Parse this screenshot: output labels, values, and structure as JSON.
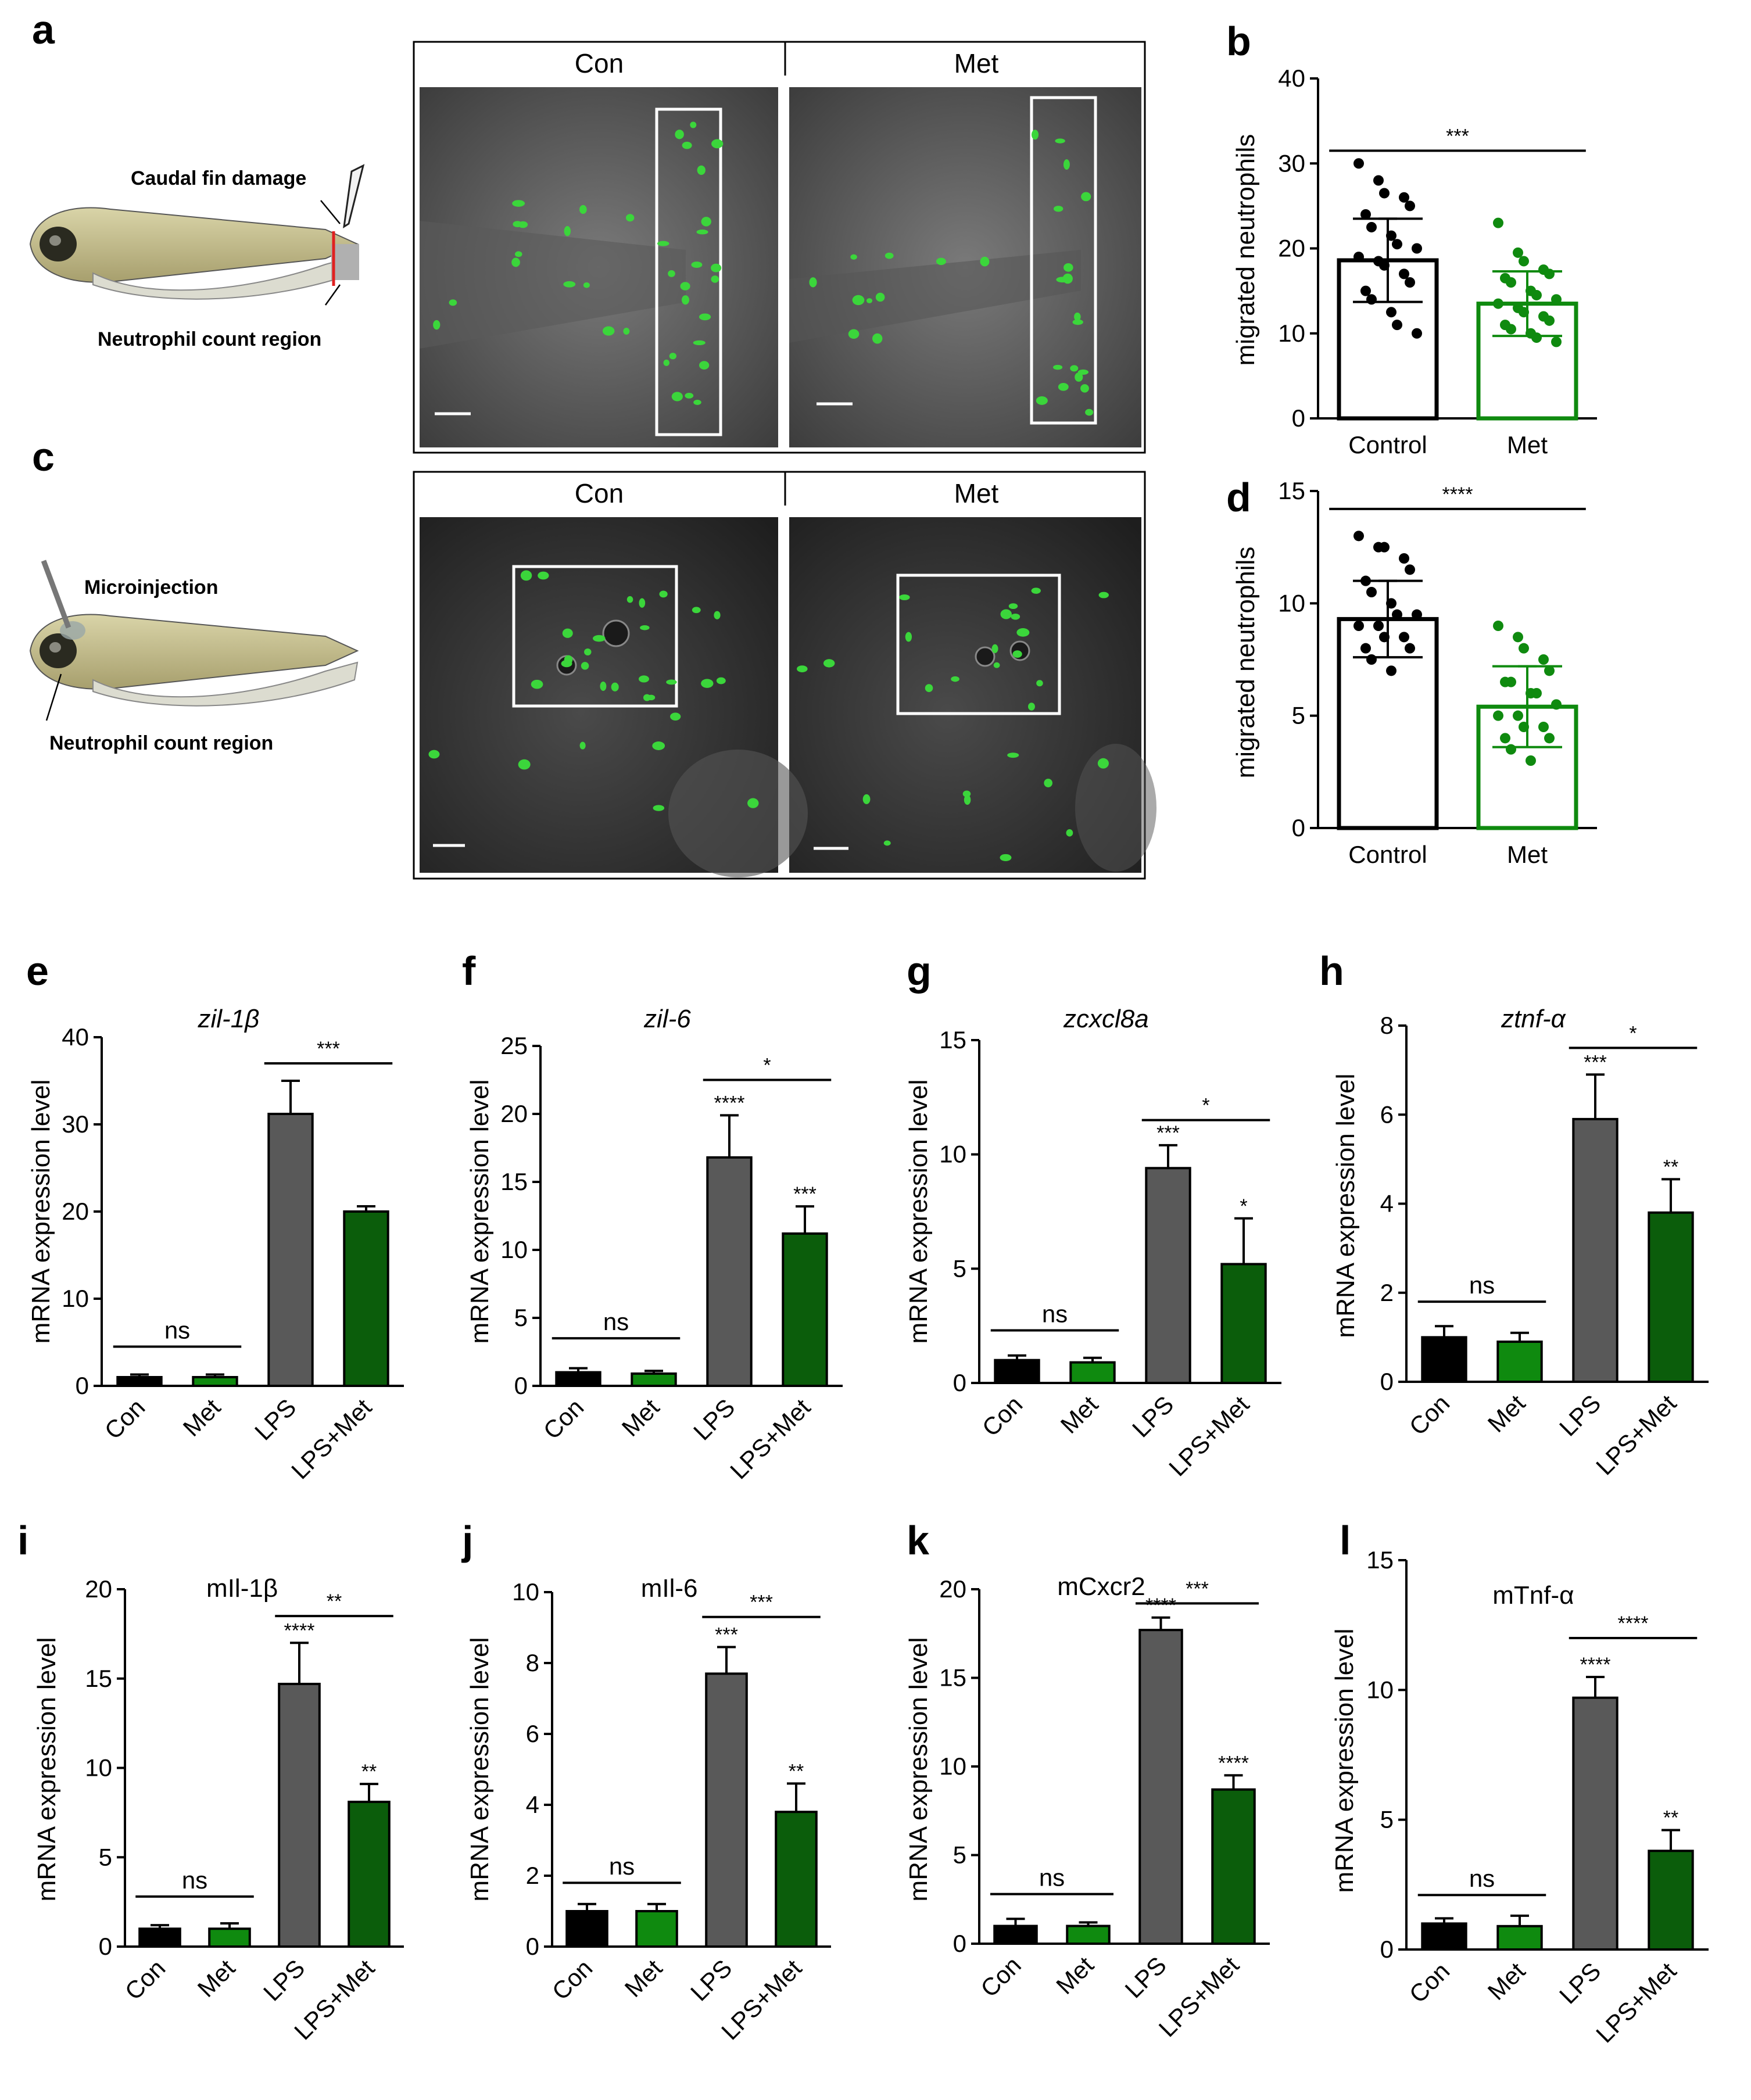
{
  "panel_letters": {
    "a": "a",
    "b": "b",
    "c": "c",
    "d": "d",
    "e": "e",
    "f": "f",
    "g": "g",
    "h": "h",
    "i": "i",
    "j": "j",
    "k": "k",
    "l": "l"
  },
  "schematic_a": {
    "label_top": "Caudal fin damage",
    "label_bottom": "Neutrophil count region"
  },
  "schematic_c": {
    "label_top": "Microinjection",
    "label_bottom": "Neutrophil count region"
  },
  "micrographs": {
    "a": {
      "left_header": "Con",
      "right_header": "Met"
    },
    "c": {
      "left_header": "Con",
      "right_header": "Met"
    }
  },
  "colors": {
    "black": "#000000",
    "green": "#0f8a0f",
    "gray": "#595959",
    "darkgreen": "#0b5d0b",
    "fluor": "#3bd63b",
    "cut": "#e02020"
  },
  "chart_data": [
    {
      "id": "b",
      "type": "bar",
      "ylabel": "migrated neutrophils",
      "categories": [
        "Control",
        "Met"
      ],
      "values": [
        18.6,
        13.5
      ],
      "errors": [
        4.9,
        3.8
      ],
      "ylim": [
        0,
        40
      ],
      "yticks": [
        "0",
        "10",
        "20",
        "30",
        "40"
      ],
      "points": [
        [
          30,
          28,
          26.5,
          26,
          25,
          24,
          22.5,
          21.5,
          20.5,
          20,
          19,
          18.5,
          18,
          17,
          16,
          15,
          14,
          12.5,
          11,
          10
        ],
        [
          23,
          19.5,
          18.5,
          17.5,
          17,
          16.5,
          16,
          15,
          14.5,
          14,
          13.5,
          13,
          12.5,
          12,
          11.5,
          11,
          10.5,
          10,
          9.5,
          9
        ]
      ],
      "fill_colors": [
        "#ffffff",
        "#ffffff"
      ],
      "edge_colors": [
        "#000000",
        "#0f8a0f"
      ],
      "significance": [
        {
          "text": "***",
          "from": 0,
          "to": 1,
          "y": 31.5
        }
      ]
    },
    {
      "id": "d",
      "type": "bar",
      "ylabel": "migrated neutrophils",
      "categories": [
        "Control",
        "Met"
      ],
      "values": [
        9.3,
        5.4
      ],
      "errors": [
        1.7,
        1.8
      ],
      "ylim": [
        0,
        15
      ],
      "yticks": [
        "0",
        "5",
        "10",
        "15"
      ],
      "points": [
        [
          13,
          12.5,
          12.5,
          12,
          11.5,
          11,
          10.5,
          10,
          9.5,
          9.5,
          9,
          9,
          8.5,
          8.5,
          8,
          8,
          7.5,
          7
        ],
        [
          9,
          8.5,
          8,
          7.5,
          7,
          6.5,
          6.5,
          6,
          6,
          5.5,
          5,
          5,
          4.5,
          4.5,
          4,
          4,
          3.5,
          3
        ]
      ],
      "fill_colors": [
        "#ffffff",
        "#ffffff"
      ],
      "edge_colors": [
        "#000000",
        "#0f8a0f"
      ],
      "significance": [
        {
          "text": "****",
          "from": 0,
          "to": 1,
          "y": 14.2
        }
      ]
    },
    {
      "id": "e",
      "type": "bar",
      "title": "zil-1β",
      "title_italic": true,
      "ylabel": "mRNA expression level",
      "categories": [
        "Con",
        "Met",
        "LPS",
        "LPS+Met"
      ],
      "values": [
        1.0,
        1.0,
        31.2,
        20.0
      ],
      "errors": [
        0.3,
        0.3,
        3.8,
        0.6
      ],
      "ylim": [
        0,
        40
      ],
      "yticks": [
        "0",
        "10",
        "20",
        "30",
        "40"
      ],
      "fill_colors": [
        "#000000",
        "#0f8a0f",
        "#595959",
        "#0b5d0b"
      ],
      "bar_marks": [
        "",
        "",
        "",
        ""
      ],
      "significance": [
        {
          "text": "ns",
          "from": 0,
          "to": 1,
          "y": 4.5
        },
        {
          "text": "***",
          "from": 2,
          "to": 3,
          "y": 37.0
        }
      ]
    },
    {
      "id": "f",
      "type": "bar",
      "title": "zil-6",
      "title_italic": true,
      "ylabel": "mRNA expression level",
      "categories": [
        "Con",
        "Met",
        "LPS",
        "LPS+Met"
      ],
      "values": [
        1.0,
        0.9,
        16.8,
        11.2
      ],
      "errors": [
        0.3,
        0.2,
        3.1,
        2.0
      ],
      "ylim": [
        0,
        25
      ],
      "yticks": [
        "0",
        "5",
        "10",
        "15",
        "20",
        "25"
      ],
      "fill_colors": [
        "#000000",
        "#0f8a0f",
        "#595959",
        "#0b5d0b"
      ],
      "bar_marks": [
        "",
        "",
        "****",
        "***"
      ],
      "significance": [
        {
          "text": "ns",
          "from": 0,
          "to": 1,
          "y": 3.5
        },
        {
          "text": "*",
          "from": 2,
          "to": 3,
          "y": 22.5
        }
      ]
    },
    {
      "id": "g",
      "type": "bar",
      "title": "zcxcl8a",
      "title_italic": true,
      "ylabel": "mRNA expression level",
      "categories": [
        "Con",
        "Met",
        "LPS",
        "LPS+Met"
      ],
      "values": [
        1.0,
        0.9,
        9.4,
        5.2
      ],
      "errors": [
        0.2,
        0.2,
        1.0,
        2.0
      ],
      "ylim": [
        0,
        15
      ],
      "yticks": [
        "0",
        "5",
        "10",
        "15"
      ],
      "fill_colors": [
        "#000000",
        "#0f8a0f",
        "#595959",
        "#0b5d0b"
      ],
      "bar_marks": [
        "",
        "",
        "***",
        "*"
      ],
      "significance": [
        {
          "text": "ns",
          "from": 0,
          "to": 1,
          "y": 2.3
        },
        {
          "text": "*",
          "from": 2,
          "to": 3,
          "y": 11.5
        }
      ]
    },
    {
      "id": "h",
      "type": "bar",
      "title": "ztnf-α",
      "title_italic": true,
      "ylabel": "mRNA expression level",
      "categories": [
        "Con",
        "Met",
        "LPS",
        "LPS+Met"
      ],
      "values": [
        1.0,
        0.9,
        5.9,
        3.8
      ],
      "errors": [
        0.25,
        0.2,
        1.0,
        0.75
      ],
      "ylim": [
        0,
        8
      ],
      "yticks": [
        "0",
        "2",
        "4",
        "6",
        "8"
      ],
      "fill_colors": [
        "#000000",
        "#0f8a0f",
        "#595959",
        "#0b5d0b"
      ],
      "bar_marks": [
        "",
        "",
        "***",
        "**"
      ],
      "significance": [
        {
          "text": "ns",
          "from": 0,
          "to": 1,
          "y": 1.8
        },
        {
          "text": "*",
          "from": 2,
          "to": 3,
          "y": 7.5
        }
      ]
    },
    {
      "id": "i",
      "type": "bar",
      "title": "mIl-1β",
      "title_italic": false,
      "ylabel": "mRNA expression level",
      "categories": [
        "Con",
        "Met",
        "LPS",
        "LPS+Met"
      ],
      "values": [
        1.0,
        1.0,
        14.7,
        8.1
      ],
      "errors": [
        0.2,
        0.3,
        2.3,
        1.0
      ],
      "ylim": [
        0,
        20
      ],
      "yticks": [
        "0",
        "5",
        "10",
        "15",
        "20"
      ],
      "fill_colors": [
        "#000000",
        "#0f8a0f",
        "#595959",
        "#0b5d0b"
      ],
      "bar_marks": [
        "",
        "",
        "****",
        "**"
      ],
      "significance": [
        {
          "text": "ns",
          "from": 0,
          "to": 1,
          "y": 2.8
        },
        {
          "text": "**",
          "from": 2,
          "to": 3,
          "y": 18.5
        }
      ]
    },
    {
      "id": "j",
      "type": "bar",
      "title": "mIl-6",
      "title_italic": false,
      "ylabel": "mRNA expression level",
      "categories": [
        "Con",
        "Met",
        "LPS",
        "LPS+Met"
      ],
      "values": [
        1.0,
        1.0,
        7.7,
        3.8
      ],
      "errors": [
        0.2,
        0.2,
        0.75,
        0.8
      ],
      "ylim": [
        0,
        10
      ],
      "yticks": [
        "0",
        "2",
        "4",
        "6",
        "8",
        "10"
      ],
      "fill_colors": [
        "#000000",
        "#0f8a0f",
        "#595959",
        "#0b5d0b"
      ],
      "bar_marks": [
        "",
        "",
        "***",
        "**"
      ],
      "significance": [
        {
          "text": "ns",
          "from": 0,
          "to": 1,
          "y": 1.8
        },
        {
          "text": "***",
          "from": 2,
          "to": 3,
          "y": 9.3
        }
      ]
    },
    {
      "id": "k",
      "type": "bar",
      "title": "mCxcr2",
      "title_italic": false,
      "ylabel": "mRNA expression level",
      "categories": [
        "Con",
        "Met",
        "LPS",
        "LPS+Met"
      ],
      "values": [
        1.0,
        1.0,
        17.7,
        8.7
      ],
      "errors": [
        0.4,
        0.2,
        0.7,
        0.8
      ],
      "ylim": [
        0,
        20
      ],
      "yticks": [
        "0",
        "5",
        "10",
        "15",
        "20"
      ],
      "fill_colors": [
        "#000000",
        "#0f8a0f",
        "#595959",
        "#0b5d0b"
      ],
      "bar_marks": [
        "",
        "",
        "****",
        "****"
      ],
      "significance": [
        {
          "text": "ns",
          "from": 0,
          "to": 1,
          "y": 2.8
        },
        {
          "text": "***",
          "from": 2,
          "to": 3,
          "y": 19.2
        }
      ]
    },
    {
      "id": "l",
      "type": "bar",
      "title": "mTnf-α",
      "title_italic": false,
      "ylabel": "mRNA expression level",
      "categories": [
        "Con",
        "Met",
        "LPS",
        "LPS+Met"
      ],
      "values": [
        1.0,
        0.9,
        9.7,
        3.8
      ],
      "errors": [
        0.2,
        0.4,
        0.8,
        0.8
      ],
      "ylim": [
        0,
        15
      ],
      "yticks": [
        "0",
        "5",
        "10",
        "15"
      ],
      "fill_colors": [
        "#000000",
        "#0f8a0f",
        "#595959",
        "#0b5d0b"
      ],
      "bar_marks": [
        "",
        "",
        "****",
        "**"
      ],
      "significance": [
        {
          "text": "ns",
          "from": 0,
          "to": 1,
          "y": 2.1
        },
        {
          "text": "****",
          "from": 2,
          "to": 3,
          "y": 12.0
        }
      ]
    }
  ]
}
